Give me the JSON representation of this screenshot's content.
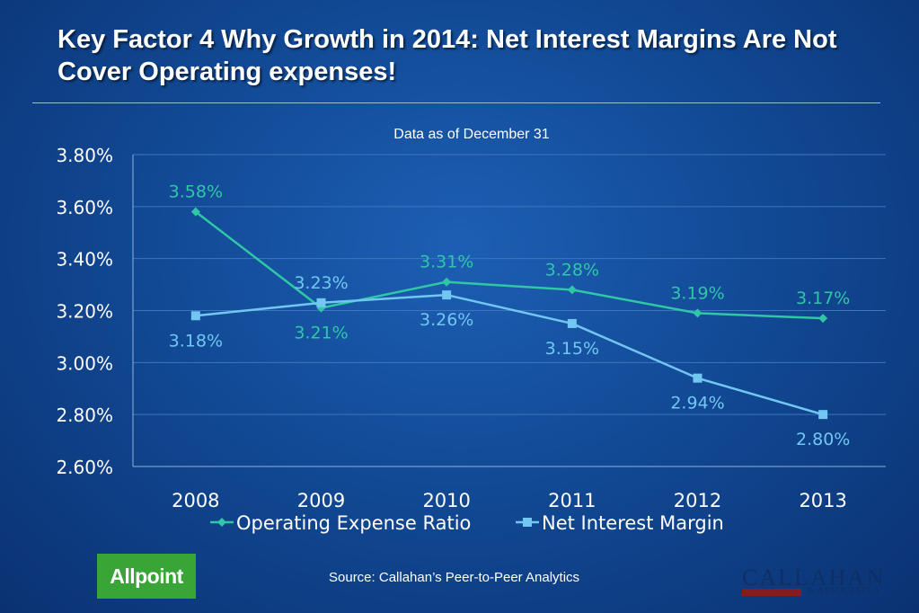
{
  "page": {
    "title": "Key Factor 4 Why Growth in 2014: Net Interest Margins Are Not Cover Operating expenses!",
    "source": "Source: Callahan’s Peer-to-Peer Analytics"
  },
  "logos": {
    "left": "Allpoint",
    "right": "CALLAHAN",
    "right_sub": "& ASSOCIATES"
  },
  "colors": {
    "operating": "#2fc7a6",
    "nim": "#72c7f2",
    "grid": "#3f74c0",
    "text": "#ffffff"
  },
  "chart_data": {
    "type": "line",
    "title": "Data as of December 31",
    "categories": [
      "2008",
      "2009",
      "2010",
      "2011",
      "2012",
      "2013"
    ],
    "ylim": [
      2.6,
      3.8
    ],
    "yticks": [
      "3.80%",
      "3.60%",
      "3.40%",
      "3.20%",
      "3.00%",
      "2.80%",
      "2.60%"
    ],
    "ytick_values": [
      3.8,
      3.6,
      3.4,
      3.2,
      3.0,
      2.8,
      2.6
    ],
    "grid": true,
    "legend": "bottom",
    "series": [
      {
        "name": "Operating Expense Ratio",
        "values": [
          3.58,
          3.21,
          3.31,
          3.28,
          3.19,
          3.17
        ],
        "labels": [
          "3.58%",
          "3.21%",
          "3.31%",
          "3.28%",
          "3.19%",
          "3.17%"
        ],
        "marker": "diamond"
      },
      {
        "name": "Net Interest Margin",
        "values": [
          3.18,
          3.23,
          3.26,
          3.15,
          2.94,
          2.8
        ],
        "labels": [
          "3.18%",
          "3.23%",
          "3.26%",
          "3.15%",
          "2.94%",
          "2.80%"
        ],
        "marker": "square"
      }
    ]
  }
}
